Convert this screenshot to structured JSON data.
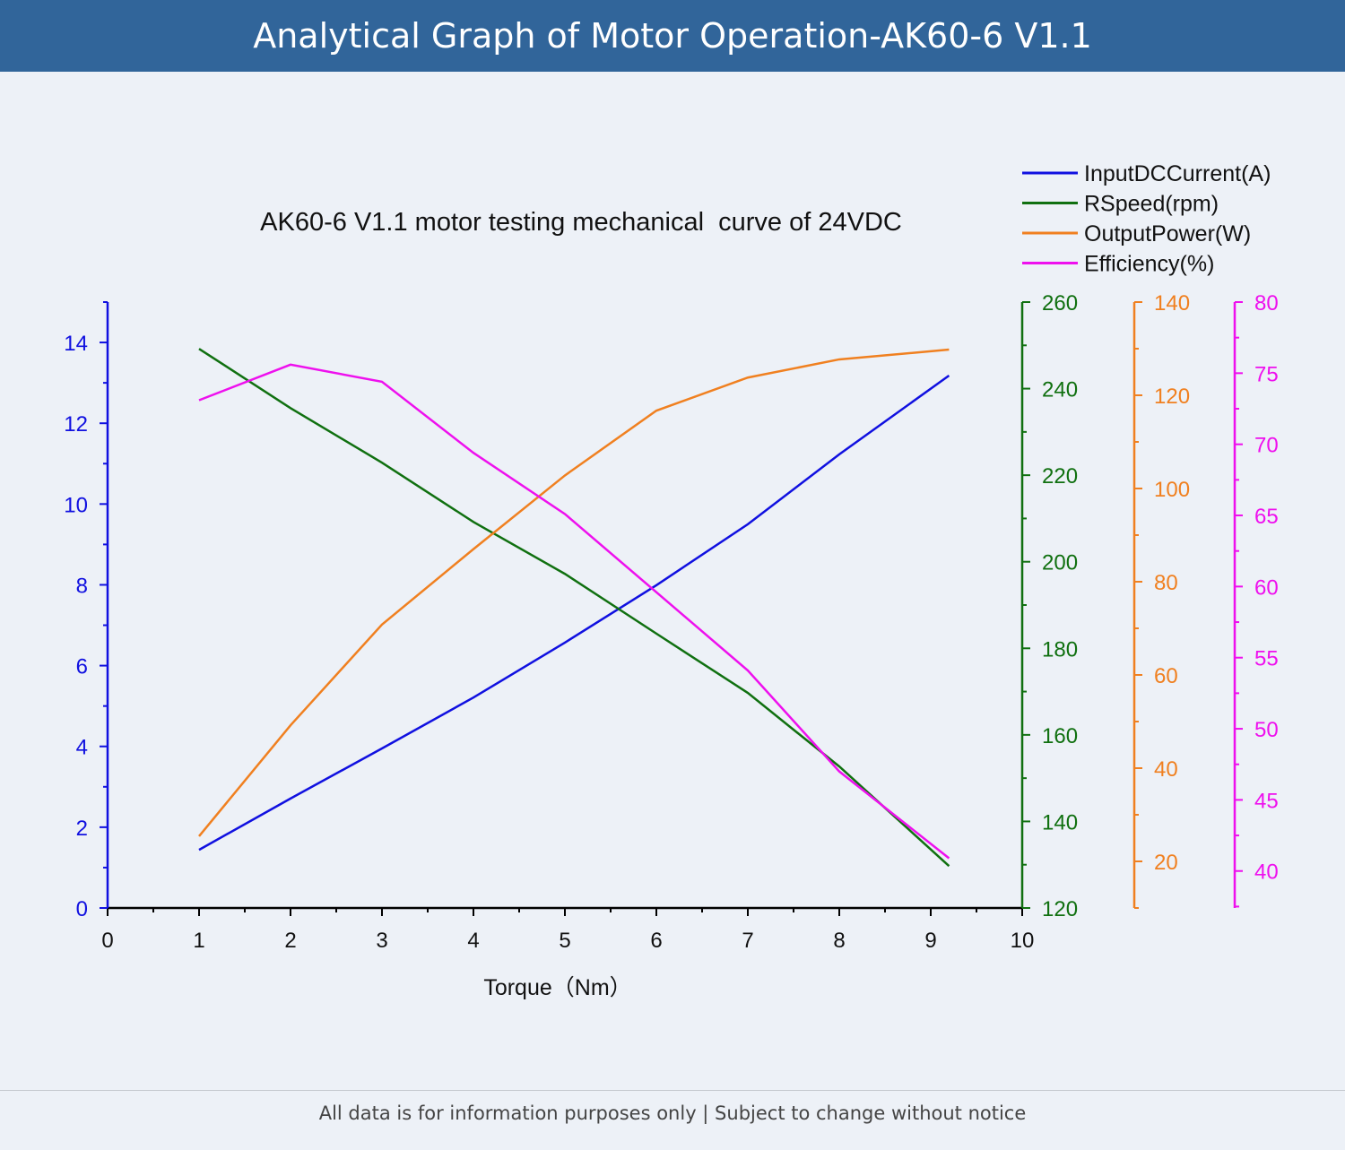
{
  "header": {
    "title": "Analytical Graph of Motor Operation-AK60-6 V1.1"
  },
  "footer": {
    "note": "All data is for information purposes only | Subject to change without notice"
  },
  "chart_data": {
    "type": "line",
    "title": "AK60-6 V1.1 motor testing mechanical  curve of 24VDC",
    "xlabel": "Torque（Nm）",
    "xlim": [
      0,
      10
    ],
    "xticks": [
      0,
      1,
      2,
      3,
      4,
      5,
      6,
      7,
      8,
      9,
      10
    ],
    "x": [
      1,
      2,
      3,
      4,
      5,
      6,
      7,
      8,
      9.2
    ],
    "legend_position": "top-right",
    "grid": false,
    "series": [
      {
        "name": "InputDCCurrent(A)",
        "color": "#1010e0",
        "axis": {
          "ylim": [
            0,
            15
          ],
          "ticks": [
            0,
            2,
            4,
            6,
            8,
            10,
            12,
            14
          ],
          "minor": 1,
          "side": "left"
        },
        "values": [
          1.44,
          2.71,
          3.95,
          5.21,
          6.57,
          7.99,
          9.5,
          11.23,
          13.18
        ]
      },
      {
        "name": "RSpeed(rpm)",
        "color": "#107010",
        "axis": {
          "ylim": [
            120,
            260
          ],
          "ticks": [
            120,
            140,
            160,
            180,
            200,
            220,
            240,
            260
          ],
          "minor": 10,
          "side": "right"
        },
        "values": [
          249.2,
          235.5,
          222.9,
          209.2,
          197.2,
          183.4,
          169.7,
          152.7,
          129.7
        ]
      },
      {
        "name": "OutputPower(W)",
        "color": "#f08020",
        "axis": {
          "ylim": [
            10,
            140
          ],
          "ticks": [
            20,
            40,
            60,
            80,
            100,
            120,
            140
          ],
          "minor": 10,
          "side": "right"
        },
        "values": [
          25.4,
          49.2,
          70.8,
          87,
          102.8,
          116.7,
          123.8,
          127.7,
          129.8
        ]
      },
      {
        "name": "Efficiency(%)",
        "color": "#ee10ee",
        "axis": {
          "ylim": [
            37.4,
            80
          ],
          "ticks": [
            40,
            45,
            50,
            55,
            60,
            65,
            70,
            75,
            80
          ],
          "minor": 2.5,
          "side": "right"
        },
        "values": [
          73.1,
          75.6,
          74.4,
          69.4,
          65.1,
          59.6,
          54.1,
          47.0,
          40.9
        ]
      }
    ]
  }
}
